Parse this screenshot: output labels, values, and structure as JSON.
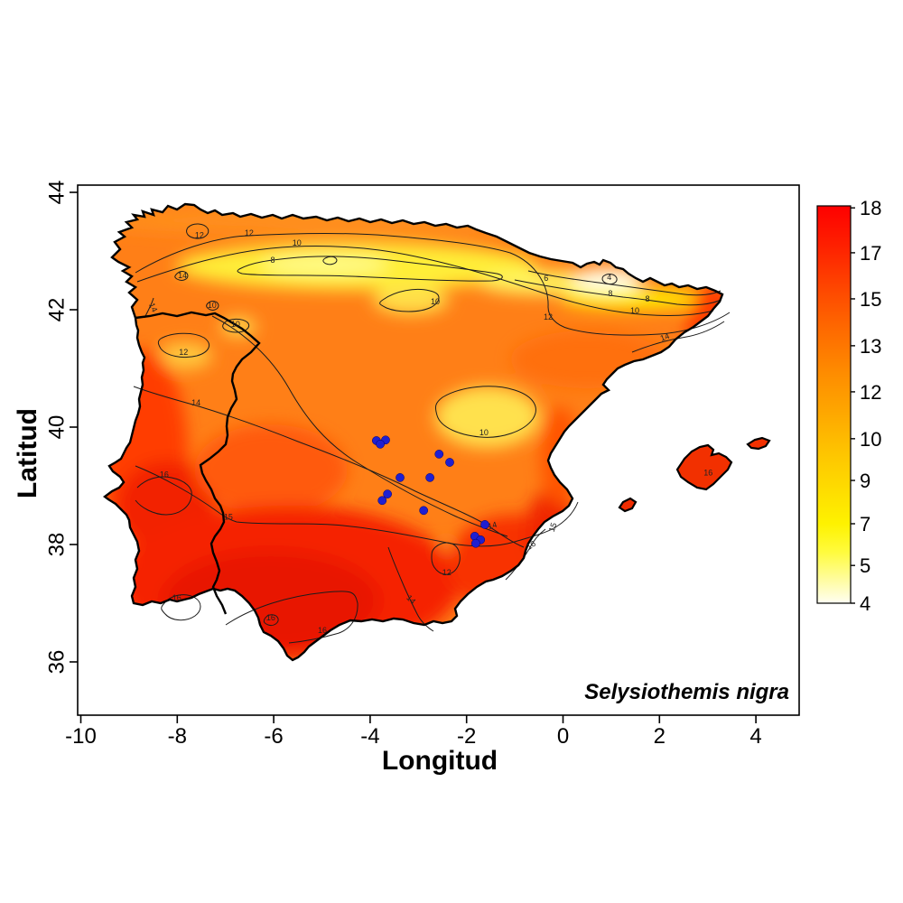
{
  "ui": {
    "background_color": "#FFFFFF",
    "plot_border_color": "#000000",
    "annotation": "Selysiothemis nigra"
  },
  "chart_data": {
    "type": "heatmap",
    "subtype": "filled-contour-map-with-occurrence-points",
    "region": "Iberian Peninsula and Balearic Islands",
    "title": "",
    "xlabel": "Longitud",
    "ylabel": "Latitud",
    "xlim": [
      -10.1,
      4.9
    ],
    "ylim": [
      35.1,
      44.1
    ],
    "x_ticks": [
      -10,
      -8,
      -6,
      -4,
      -2,
      0,
      2,
      4
    ],
    "y_ticks": [
      36,
      38,
      40,
      42,
      44
    ],
    "grid": false,
    "legend_position": "colorbar-right",
    "colorbar": {
      "min": 4,
      "max": 18,
      "orientation": "vertical",
      "ticks": [
        {
          "label": "18",
          "pos": 0.005
        },
        {
          "label": "17",
          "pos": 0.118
        },
        {
          "label": "15",
          "pos": 0.234
        },
        {
          "label": "13",
          "pos": 0.352
        },
        {
          "label": "12",
          "pos": 0.468
        },
        {
          "label": "10",
          "pos": 0.586
        },
        {
          "label": "9",
          "pos": 0.691
        },
        {
          "label": "7",
          "pos": 0.8
        },
        {
          "label": "5",
          "pos": 0.905
        },
        {
          "label": "4",
          "pos": 1.0
        }
      ],
      "palette_top_to_bottom": [
        "#FE0000",
        "#FE4D00",
        "#FE8000",
        "#FEAD00",
        "#FED800",
        "#FFFB28",
        "#FFFC80",
        "#FFFEF0"
      ]
    },
    "contour_levels": [
      4,
      6,
      8,
      10,
      12,
      14,
      15,
      16
    ],
    "contour_labels": [
      {
        "value": "12",
        "lon": -7.54,
        "lat": 43.22,
        "rot": 0
      },
      {
        "value": "12",
        "lon": -6.51,
        "lat": 43.26,
        "rot": 0
      },
      {
        "value": "10",
        "lon": -5.52,
        "lat": 43.09,
        "rot": 0
      },
      {
        "value": "8",
        "lon": -6.02,
        "lat": 42.8,
        "rot": 0
      },
      {
        "value": "14",
        "lon": -7.89,
        "lat": 42.54,
        "rot": 0
      },
      {
        "value": "10",
        "lon": -7.28,
        "lat": 42.03,
        "rot": 0
      },
      {
        "value": "14",
        "lon": -8.55,
        "lat": 42.02,
        "rot": 65
      },
      {
        "value": "10",
        "lon": -6.79,
        "lat": 41.71,
        "rot": 0
      },
      {
        "value": "12",
        "lon": -7.87,
        "lat": 41.23,
        "rot": 0
      },
      {
        "value": "10",
        "lon": -2.65,
        "lat": 42.09,
        "rot": 0
      },
      {
        "value": "10",
        "lon": -1.64,
        "lat": 39.86,
        "rot": 0
      },
      {
        "value": "6",
        "lon": -0.35,
        "lat": 42.49,
        "rot": 0
      },
      {
        "value": "4",
        "lon": 0.96,
        "lat": 42.51,
        "rot": 0
      },
      {
        "value": "8",
        "lon": 0.98,
        "lat": 42.23,
        "rot": 0
      },
      {
        "value": "8",
        "lon": 1.75,
        "lat": 42.14,
        "rot": 0
      },
      {
        "value": "10",
        "lon": 1.49,
        "lat": 41.94,
        "rot": 0
      },
      {
        "value": "12",
        "lon": -0.31,
        "lat": 41.83,
        "rot": 0
      },
      {
        "value": "14",
        "lon": 2.13,
        "lat": 41.49,
        "rot": -20
      },
      {
        "value": "14",
        "lon": -7.61,
        "lat": 40.37,
        "rot": 0
      },
      {
        "value": "14",
        "lon": -1.45,
        "lat": 38.28,
        "rot": -15
      },
      {
        "value": "16",
        "lon": -8.27,
        "lat": 39.15,
        "rot": 0
      },
      {
        "value": "15",
        "lon": -6.94,
        "lat": 38.42,
        "rot": 0
      },
      {
        "value": "15",
        "lon": -0.16,
        "lat": 38.28,
        "rot": -72
      },
      {
        "value": "16",
        "lon": -0.63,
        "lat": 37.95,
        "rot": -35
      },
      {
        "value": "16",
        "lon": -8.01,
        "lat": 37.05,
        "rot": 0
      },
      {
        "value": "16",
        "lon": -6.06,
        "lat": 36.71,
        "rot": 0
      },
      {
        "value": "16",
        "lon": -4.99,
        "lat": 36.49,
        "rot": 0
      },
      {
        "value": "12",
        "lon": -2.41,
        "lat": 37.48,
        "rot": 0
      },
      {
        "value": "14",
        "lon": -3.19,
        "lat": 37.03,
        "rot": 45
      },
      {
        "value": "16",
        "lon": 3.01,
        "lat": 39.18,
        "rot": 0
      }
    ],
    "occurrences": {
      "species": "Selysiothemis nigra",
      "marker_color": "#1F1FD1",
      "points_lon_lat": [
        [
          -3.87,
          39.77
        ],
        [
          -3.68,
          39.78
        ],
        [
          -3.79,
          39.71
        ],
        [
          -2.57,
          39.54
        ],
        [
          -2.35,
          39.4
        ],
        [
          -3.38,
          39.14
        ],
        [
          -2.76,
          39.14
        ],
        [
          -3.64,
          38.86
        ],
        [
          -3.75,
          38.75
        ],
        [
          -2.89,
          38.58
        ],
        [
          -1.62,
          38.34
        ],
        [
          -1.83,
          38.14
        ],
        [
          -1.71,
          38.08
        ],
        [
          -1.81,
          38.02
        ]
      ]
    }
  }
}
